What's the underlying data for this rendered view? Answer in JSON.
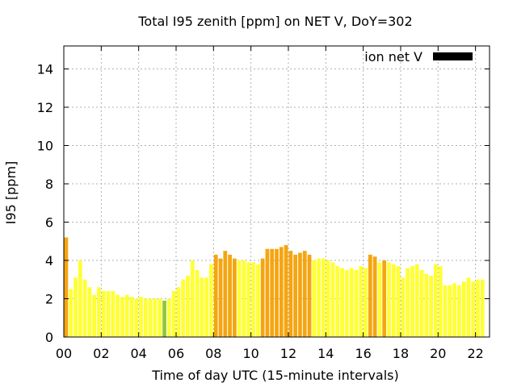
{
  "chart_data": {
    "type": "bar",
    "title": "Total I95 zenith [ppm] on NET V, DoY=302",
    "xlabel": "Time of day UTC (15-minute intervals)",
    "ylabel": "I95 [ppm]",
    "xlim": [
      0,
      22.75
    ],
    "ylim": [
      0,
      15.2
    ],
    "x_ticks": [
      0,
      2,
      4,
      6,
      8,
      10,
      12,
      14,
      16,
      18,
      20,
      22
    ],
    "x_tick_labels": [
      "00",
      "02",
      "04",
      "06",
      "08",
      "10",
      "12",
      "14",
      "16",
      "18",
      "20",
      "22"
    ],
    "y_ticks": [
      0,
      2,
      4,
      6,
      8,
      10,
      12,
      14
    ],
    "y_tick_labels": [
      "0",
      "2",
      "4",
      "6",
      "8",
      "10",
      "12",
      "14"
    ],
    "grid": true,
    "legend_position": "top-right",
    "legend": [
      {
        "label": "ion net V",
        "color": "#000000"
      }
    ],
    "colors": {
      "low": "#ffff33",
      "high": "#f5a511",
      "green": "#8cc63f"
    },
    "interval_hours": 0.25,
    "values": [
      5.2,
      2.5,
      3.1,
      4.0,
      3.0,
      2.6,
      2.2,
      2.6,
      2.4,
      2.4,
      2.4,
      2.2,
      2.1,
      2.2,
      2.1,
      2.0,
      2.1,
      2.0,
      2.0,
      2.0,
      2.0,
      1.9,
      2.0,
      2.4,
      2.6,
      3.0,
      3.2,
      4.0,
      3.5,
      3.1,
      3.1,
      3.8,
      4.3,
      4.1,
      4.5,
      4.3,
      4.1,
      4.0,
      4.0,
      3.9,
      3.9,
      3.8,
      4.1,
      4.6,
      4.6,
      4.6,
      4.7,
      4.8,
      4.5,
      4.3,
      4.4,
      4.5,
      4.3,
      4.0,
      4.1,
      4.1,
      4.0,
      3.9,
      3.7,
      3.6,
      3.5,
      3.6,
      3.5,
      3.7,
      3.6,
      4.3,
      4.2,
      3.9,
      4.0,
      3.9,
      3.8,
      3.7,
      3.1,
      3.6,
      3.7,
      3.8,
      3.5,
      3.3,
      3.2,
      3.8,
      3.7,
      2.7,
      2.7,
      2.8,
      2.7,
      2.9,
      3.1,
      2.9,
      3.0,
      3.0
    ],
    "colors_per_bar": [
      "high",
      "low",
      "low",
      "low",
      "low",
      "low",
      "low",
      "low",
      "low",
      "low",
      "low",
      "low",
      "low",
      "low",
      "low",
      "low",
      "low",
      "low",
      "low",
      "low",
      "low",
      "green",
      "low",
      "low",
      "low",
      "low",
      "low",
      "low",
      "low",
      "low",
      "low",
      "low",
      "high",
      "high",
      "high",
      "high",
      "high",
      "low",
      "low",
      "low",
      "low",
      "low",
      "high",
      "high",
      "high",
      "high",
      "high",
      "high",
      "high",
      "high",
      "high",
      "high",
      "high",
      "low",
      "low",
      "low",
      "low",
      "low",
      "low",
      "low",
      "low",
      "low",
      "low",
      "low",
      "low",
      "high",
      "high",
      "low",
      "high",
      "low",
      "low",
      "low",
      "low",
      "low",
      "low",
      "low",
      "low",
      "low",
      "low",
      "low",
      "low",
      "low",
      "low",
      "low",
      "low",
      "low",
      "low",
      "low",
      "low",
      "low"
    ]
  }
}
